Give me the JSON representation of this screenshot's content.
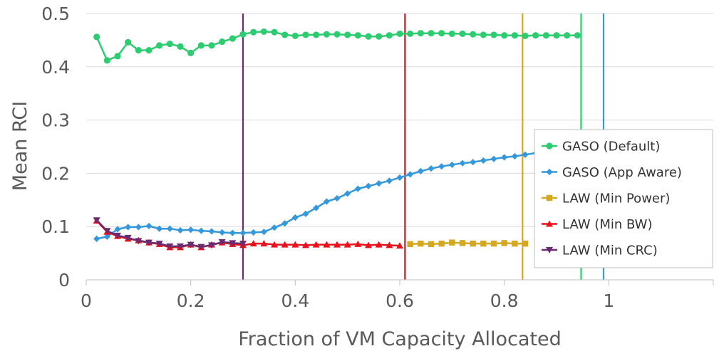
{
  "chart_data": {
    "type": "line",
    "title": "",
    "xlabel": "Fraction of VM Capacity Allocated",
    "ylabel": "Mean RCI",
    "xlim": [
      0,
      1.2
    ],
    "ylim": [
      0,
      0.5
    ],
    "xticks": [
      "0",
      "0.2",
      "0.4",
      "0.6",
      "0.8",
      "1"
    ],
    "yticks": [
      "0",
      "0.1",
      "0.2",
      "0.3",
      "0.4",
      "0.5"
    ],
    "grid": "horizontal",
    "legend_position": "right",
    "series": [
      {
        "name": "GASO (Default)",
        "color": "#2ecc71",
        "marker": "circle",
        "x": [
          0.02,
          0.04,
          0.06,
          0.08,
          0.1,
          0.12,
          0.14,
          0.16,
          0.18,
          0.2,
          0.22,
          0.24,
          0.26,
          0.28,
          0.3,
          0.32,
          0.34,
          0.36,
          0.38,
          0.4,
          0.42,
          0.44,
          0.46,
          0.48,
          0.5,
          0.52,
          0.54,
          0.56,
          0.58,
          0.6,
          0.62,
          0.64,
          0.66,
          0.68,
          0.7,
          0.72,
          0.74,
          0.76,
          0.78,
          0.8,
          0.82,
          0.84,
          0.86,
          0.88,
          0.9,
          0.92,
          0.94
        ],
        "y": [
          0.456,
          0.412,
          0.42,
          0.446,
          0.431,
          0.431,
          0.44,
          0.443,
          0.438,
          0.426,
          0.44,
          0.44,
          0.447,
          0.453,
          0.461,
          0.465,
          0.466,
          0.465,
          0.46,
          0.458,
          0.46,
          0.46,
          0.461,
          0.461,
          0.46,
          0.459,
          0.457,
          0.457,
          0.459,
          0.462,
          0.462,
          0.463,
          0.463,
          0.463,
          0.462,
          0.462,
          0.461,
          0.46,
          0.46,
          0.459,
          0.459,
          0.458,
          0.459,
          0.459,
          0.459,
          0.459,
          0.459
        ]
      },
      {
        "name": "GASO (App Aware)",
        "color": "#3498db",
        "marker": "diamond",
        "x": [
          0.02,
          0.04,
          0.06,
          0.08,
          0.1,
          0.12,
          0.14,
          0.16,
          0.18,
          0.2,
          0.22,
          0.24,
          0.26,
          0.28,
          0.3,
          0.32,
          0.34,
          0.36,
          0.38,
          0.4,
          0.42,
          0.44,
          0.46,
          0.48,
          0.5,
          0.52,
          0.54,
          0.56,
          0.58,
          0.6,
          0.62,
          0.64,
          0.66,
          0.68,
          0.7,
          0.72,
          0.74,
          0.76,
          0.78,
          0.8,
          0.82,
          0.84,
          0.86,
          0.88,
          0.9,
          0.92,
          0.94,
          0.96,
          0.98
        ],
        "y": [
          0.077,
          0.081,
          0.095,
          0.099,
          0.099,
          0.101,
          0.096,
          0.096,
          0.093,
          0.094,
          0.092,
          0.091,
          0.089,
          0.088,
          0.088,
          0.089,
          0.09,
          0.098,
          0.106,
          0.117,
          0.124,
          0.135,
          0.147,
          0.153,
          0.162,
          0.171,
          0.176,
          0.181,
          0.186,
          0.192,
          0.198,
          0.204,
          0.209,
          0.213,
          0.216,
          0.219,
          0.221,
          0.224,
          0.227,
          0.23,
          0.232,
          0.235,
          0.238,
          0.241,
          0.243,
          0.245,
          0.247,
          0.25,
          0.254
        ]
      },
      {
        "name": "LAW (Min Power)",
        "color": "#d4a820",
        "marker": "square",
        "x": [
          0.62,
          0.64,
          0.66,
          0.68,
          0.7,
          0.72,
          0.74,
          0.76,
          0.78,
          0.8,
          0.82,
          0.84
        ],
        "y": [
          0.067,
          0.068,
          0.067,
          0.068,
          0.07,
          0.069,
          0.068,
          0.068,
          0.068,
          0.069,
          0.068,
          0.068
        ]
      },
      {
        "name": "LAW (Min BW)",
        "color": "#e8101a",
        "marker": "triangle",
        "x": [
          0.02,
          0.04,
          0.06,
          0.08,
          0.1,
          0.12,
          0.14,
          0.16,
          0.18,
          0.2,
          0.22,
          0.24,
          0.26,
          0.28,
          0.3,
          0.32,
          0.34,
          0.36,
          0.38,
          0.4,
          0.42,
          0.44,
          0.46,
          0.48,
          0.5,
          0.52,
          0.54,
          0.56,
          0.58,
          0.6
        ],
        "y": [
          0.111,
          0.09,
          0.082,
          0.077,
          0.074,
          0.07,
          0.067,
          0.061,
          0.061,
          0.066,
          0.061,
          0.066,
          0.07,
          0.067,
          0.065,
          0.068,
          0.068,
          0.066,
          0.066,
          0.066,
          0.065,
          0.066,
          0.066,
          0.066,
          0.066,
          0.067,
          0.065,
          0.066,
          0.065,
          0.064
        ]
      },
      {
        "name": "LAW (Min CRC)",
        "color": "#6a2c70",
        "marker": "triangle-down",
        "x": [
          0.02,
          0.04,
          0.06,
          0.08,
          0.1,
          0.12,
          0.14,
          0.16,
          0.18,
          0.2,
          0.22,
          0.24,
          0.26,
          0.28,
          0.3
        ],
        "y": [
          0.112,
          0.092,
          0.083,
          0.079,
          0.073,
          0.07,
          0.068,
          0.063,
          0.063,
          0.066,
          0.062,
          0.065,
          0.071,
          0.069,
          0.068
        ]
      }
    ],
    "vertical_lines": [
      {
        "x": 0.3,
        "color": "#6a2c70"
      },
      {
        "x": 0.61,
        "color": "#e8101a"
      },
      {
        "x": 0.835,
        "color": "#d4a820"
      },
      {
        "x": 0.947,
        "color": "#2ecc71"
      },
      {
        "x": 0.99,
        "color": "#3498db"
      }
    ]
  }
}
